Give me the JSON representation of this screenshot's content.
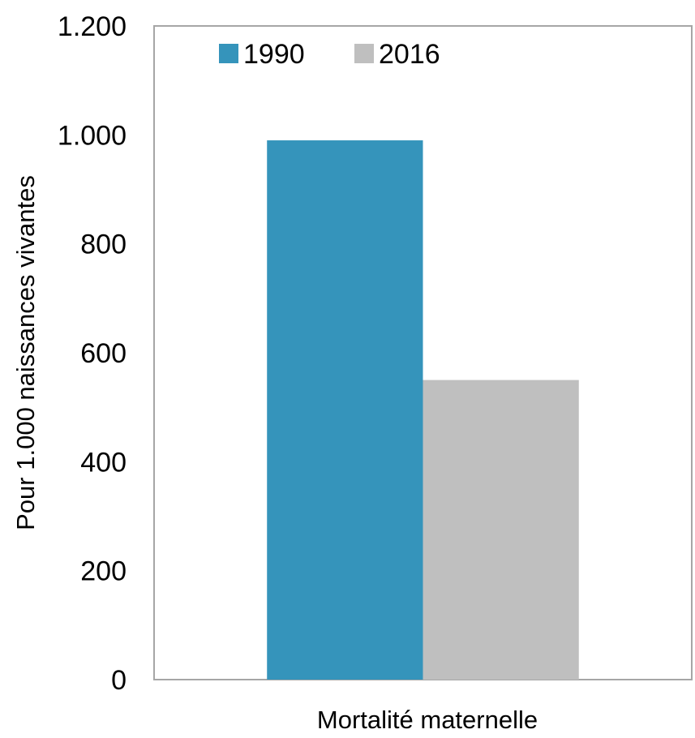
{
  "chart_data": {
    "type": "bar",
    "title": "",
    "xlabel": "Mortalité maternelle",
    "ylabel": "Pour 1.000 naissances vivantes",
    "categories": [
      "Mortalité maternelle"
    ],
    "series": [
      {
        "name": "1990",
        "values": [
          990
        ],
        "color": "#3594BB"
      },
      {
        "name": "2016",
        "values": [
          550
        ],
        "color": "#BFBFBF"
      }
    ],
    "ylim": [
      0,
      1200
    ],
    "yticks": [
      0,
      200,
      400,
      600,
      800,
      1000,
      1200
    ],
    "ytick_labels": [
      "0",
      "200",
      "400",
      "600",
      "800",
      "1.000",
      "1.200"
    ],
    "grid": false,
    "legend_position": "top-left",
    "frame_color": "#A6A6A6"
  }
}
